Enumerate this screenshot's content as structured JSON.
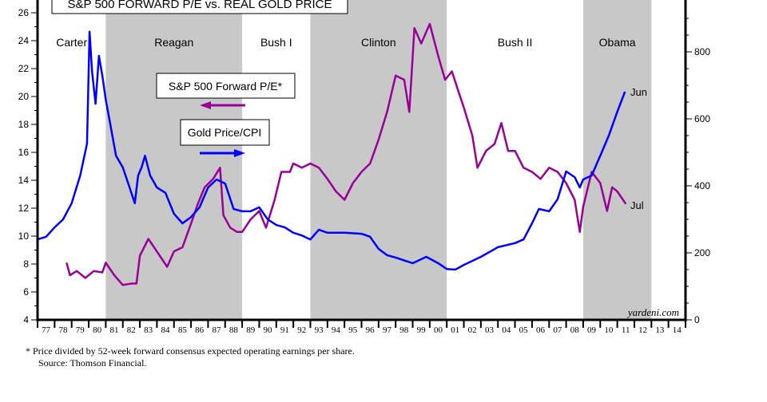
{
  "chart_data": {
    "type": "line",
    "title": "S&P 500 FORWARD P/E vs. REAL GOLD PRICE",
    "xlim": [
      1977,
      2015
    ],
    "x_tick_labels": [
      "77",
      "78",
      "79",
      "80",
      "81",
      "82",
      "83",
      "84",
      "85",
      "86",
      "87",
      "88",
      "89",
      "90",
      "91",
      "92",
      "93",
      "94",
      "95",
      "96",
      "97",
      "98",
      "99",
      "00",
      "01",
      "02",
      "03",
      "04",
      "05",
      "06",
      "07",
      "08",
      "09",
      "10",
      "11",
      "12",
      "13",
      "14"
    ],
    "y_left": {
      "range": [
        4,
        26
      ],
      "ticks": [
        4,
        6,
        8,
        10,
        12,
        14,
        16,
        18,
        20,
        22,
        24,
        26
      ]
    },
    "y_right": {
      "range": [
        0,
        917
      ],
      "ticks": [
        0,
        200,
        400,
        600,
        800
      ]
    },
    "grid": false,
    "shaded_periods": [
      {
        "label": "Carter",
        "start": 1977,
        "end": 1981,
        "shaded": false
      },
      {
        "label": "Reagan",
        "start": 1981,
        "end": 1989,
        "shaded": true
      },
      {
        "label": "Bush I",
        "start": 1989,
        "end": 1993,
        "shaded": false
      },
      {
        "label": "Clinton",
        "start": 1993,
        "end": 2001,
        "shaded": true
      },
      {
        "label": "Bush II",
        "start": 2001,
        "end": 2009,
        "shaded": false
      },
      {
        "label": "Obama",
        "start": 2009,
        "end": 2013,
        "shaded": true
      }
    ],
    "shade_color": "#c8c8c8",
    "series": [
      {
        "name": "S&P 500 Forward P/E*",
        "axis": "left",
        "color": "#990099",
        "end_label": "Jul",
        "legend_arrow": "left",
        "x": [
          1978.7,
          1978.9,
          1979.3,
          1979.8,
          1980.3,
          1980.8,
          1981.0,
          1981.5,
          1982.0,
          1982.5,
          1982.8,
          1983.0,
          1983.5,
          1984.0,
          1984.6,
          1985.0,
          1985.5,
          1986.0,
          1986.4,
          1986.8,
          1987.3,
          1987.7,
          1987.9,
          1988.3,
          1988.7,
          1989.0,
          1989.5,
          1990.0,
          1990.4,
          1990.9,
          1991.3,
          1991.8,
          1992.0,
          1992.5,
          1993.0,
          1993.5,
          1994.0,
          1994.5,
          1995.0,
          1995.5,
          1996.0,
          1996.5,
          1997.0,
          1997.5,
          1998.0,
          1998.5,
          1998.8,
          1999.1,
          1999.5,
          2000.0,
          2000.5,
          2000.9,
          2001.3,
          2001.7,
          2002.0,
          2002.5,
          2002.8,
          2003.3,
          2003.8,
          2004.2,
          2004.6,
          2005.0,
          2005.5,
          2006.0,
          2006.5,
          2007.0,
          2007.5,
          2008.0,
          2008.5,
          2008.8,
          2009.0,
          2009.5,
          2010.0,
          2010.4,
          2010.7,
          2011.0,
          2011.5
        ],
        "y": [
          8.1,
          7.2,
          7.5,
          7.0,
          7.5,
          7.4,
          8.1,
          7.2,
          6.5,
          6.6,
          6.6,
          8.6,
          9.8,
          8.9,
          7.8,
          8.9,
          9.2,
          10.9,
          12.3,
          13.5,
          14.1,
          14.9,
          11.5,
          10.6,
          10.3,
          10.3,
          11.2,
          11.8,
          10.6,
          12.6,
          14.6,
          14.6,
          15.2,
          14.9,
          15.2,
          14.9,
          14.1,
          13.2,
          12.6,
          13.8,
          14.6,
          15.2,
          16.9,
          18.9,
          21.5,
          21.2,
          18.9,
          24.9,
          23.8,
          25.2,
          22.9,
          21.2,
          21.8,
          20.3,
          19.2,
          17.2,
          14.9,
          16.1,
          16.6,
          18.1,
          16.1,
          16.1,
          14.9,
          14.6,
          14.1,
          14.9,
          14.6,
          13.8,
          12.6,
          10.3,
          12.1,
          14.6,
          13.8,
          11.8,
          13.5,
          13.2,
          12.3
        ]
      },
      {
        "name": "Gold Price/CPI",
        "axis": "right",
        "color": "#0000ff",
        "end_label": "Jun",
        "legend_arrow": "right",
        "x": [
          1977.0,
          1977.5,
          1978.0,
          1978.5,
          1979.0,
          1979.5,
          1979.9,
          1980.05,
          1980.2,
          1980.4,
          1980.6,
          1980.8,
          1981.0,
          1981.3,
          1981.6,
          1982.0,
          1982.4,
          1982.7,
          1982.9,
          1983.1,
          1983.3,
          1983.6,
          1984.0,
          1984.5,
          1985.0,
          1985.5,
          1986.0,
          1986.5,
          1987.0,
          1987.5,
          1988.0,
          1988.5,
          1989.0,
          1989.5,
          1990.0,
          1990.5,
          1991.0,
          1991.5,
          1992.0,
          1992.5,
          1993.0,
          1993.5,
          1994.0,
          1995.0,
          1996.0,
          1996.5,
          1997.0,
          1997.5,
          1998.0,
          1999.0,
          1999.8,
          2000.5,
          2001.0,
          2001.5,
          2002.0,
          2003.0,
          2004.0,
          2005.0,
          2005.5,
          2006.0,
          2006.4,
          2007.0,
          2007.5,
          2008.0,
          2008.5,
          2008.8,
          2009.0,
          2009.5,
          2010.0,
          2010.5,
          2011.0,
          2011.45
        ],
        "y": [
          240,
          248,
          276,
          300,
          348,
          431,
          526,
          860,
          740,
          645,
          788,
          729,
          657,
          574,
          490,
          455,
          395,
          348,
          431,
          455,
          490,
          431,
          395,
          379,
          317,
          288,
          307,
          336,
          395,
          419,
          407,
          331,
          324,
          324,
          336,
          300,
          283,
          276,
          260,
          252,
          240,
          269,
          260,
          260,
          257,
          248,
          212,
          193,
          186,
          169,
          188,
          169,
          152,
          150,
          164,
          188,
          217,
          229,
          240,
          288,
          331,
          324,
          360,
          443,
          426,
          395,
          419,
          431,
          490,
          550,
          621,
          681
        ]
      }
    ]
  },
  "watermark": "yardeni.com",
  "footnote": {
    "note": "*  Price divided by 52-week forward consensus expected operating earnings per share.",
    "source": "Source: Thomson Financial."
  }
}
